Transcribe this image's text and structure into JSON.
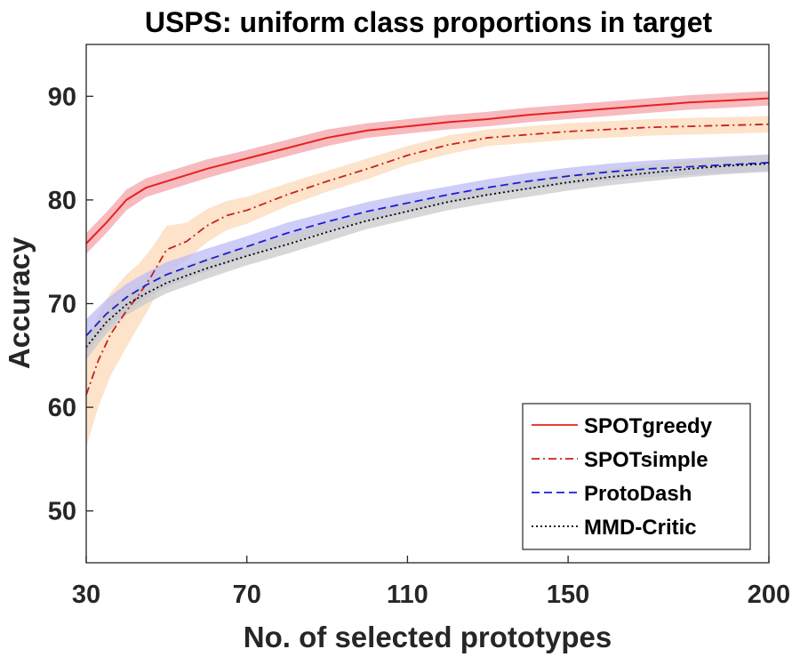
{
  "chart_data": {
    "type": "line",
    "title": "USPS: uniform class proportions in target",
    "xlabel": "No. of selected prototypes",
    "ylabel": "Accuracy",
    "xlim": [
      30,
      200
    ],
    "ylim": [
      45,
      95
    ],
    "xticks": [
      30,
      70,
      110,
      150,
      200
    ],
    "yticks": [
      50,
      60,
      70,
      80,
      90
    ],
    "grid": false,
    "legend_position": "bottom-right",
    "series": [
      {
        "name": "SPOTgreedy",
        "color": "#e8211e",
        "band_color": "#f4a3a8",
        "style": "solid",
        "x": [
          30,
          35,
          40,
          45,
          50,
          55,
          60,
          70,
          80,
          90,
          100,
          110,
          120,
          130,
          140,
          150,
          160,
          170,
          180,
          190,
          200
        ],
        "y": [
          75.8,
          77.8,
          80.0,
          81.2,
          81.8,
          82.4,
          83.0,
          84.0,
          85.0,
          86.0,
          86.7,
          87.1,
          87.5,
          87.8,
          88.2,
          88.5,
          88.8,
          89.1,
          89.4,
          89.6,
          89.8
        ],
        "band": [
          1.0,
          1.0,
          1.0,
          0.9,
          0.9,
          0.9,
          0.9,
          0.8,
          0.8,
          0.8,
          0.7,
          0.7,
          0.7,
          0.7,
          0.7,
          0.7,
          0.7,
          0.7,
          0.7,
          0.7,
          0.7
        ]
      },
      {
        "name": "SPOTsimple",
        "color": "#c8211e",
        "band_color": "#fbd9b8",
        "style": "dashdot",
        "x": [
          30,
          33,
          36,
          40,
          43,
          46,
          50,
          55,
          60,
          65,
          70,
          80,
          90,
          100,
          110,
          120,
          130,
          140,
          150,
          160,
          170,
          180,
          190,
          200
        ],
        "y": [
          61.2,
          64.5,
          67.0,
          69.3,
          70.8,
          72.5,
          75.2,
          76.0,
          77.5,
          78.5,
          79.0,
          80.5,
          81.8,
          83.0,
          84.3,
          85.3,
          86.0,
          86.3,
          86.6,
          86.8,
          87.0,
          87.1,
          87.2,
          87.3
        ],
        "band": [
          5.0,
          4.5,
          4.0,
          3.5,
          3.0,
          2.7,
          2.3,
          1.8,
          1.6,
          1.4,
          1.3,
          1.1,
          1.0,
          1.0,
          0.9,
          0.9,
          0.8,
          0.8,
          0.8,
          0.8,
          0.8,
          0.8,
          0.8,
          0.8
        ]
      },
      {
        "name": "ProtoDash",
        "color": "#1c1cd6",
        "band_color": "#bcbcf6",
        "style": "dashed",
        "x": [
          30,
          35,
          40,
          45,
          50,
          60,
          70,
          80,
          90,
          100,
          110,
          120,
          130,
          140,
          150,
          160,
          170,
          180,
          190,
          200
        ],
        "y": [
          66.9,
          69.0,
          70.6,
          71.8,
          72.8,
          74.2,
          75.5,
          76.8,
          77.9,
          78.9,
          79.7,
          80.5,
          81.2,
          81.8,
          82.3,
          82.7,
          83.0,
          83.2,
          83.4,
          83.6
        ],
        "band": [
          1.6,
          1.4,
          1.3,
          1.2,
          1.2,
          1.1,
          1.0,
          1.0,
          0.9,
          0.9,
          0.9,
          0.8,
          0.8,
          0.8,
          0.8,
          0.8,
          0.8,
          0.8,
          0.8,
          0.8
        ]
      },
      {
        "name": "MMD-Critic",
        "color": "#000000",
        "band_color": "#c9c9c9",
        "style": "dotted",
        "x": [
          30,
          35,
          40,
          45,
          50,
          60,
          70,
          80,
          90,
          100,
          110,
          120,
          130,
          140,
          150,
          160,
          170,
          180,
          190,
          200
        ],
        "y": [
          65.8,
          68.2,
          69.9,
          71.0,
          72.0,
          73.4,
          74.6,
          75.7,
          76.9,
          78.0,
          78.9,
          79.8,
          80.5,
          81.1,
          81.7,
          82.2,
          82.6,
          83.0,
          83.3,
          83.5
        ],
        "band": [
          1.2,
          1.1,
          1.0,
          1.0,
          1.0,
          1.0,
          0.9,
          0.9,
          0.9,
          0.8,
          0.8,
          0.8,
          0.8,
          0.8,
          0.8,
          0.8,
          0.8,
          0.8,
          0.8,
          0.8
        ]
      }
    ]
  }
}
